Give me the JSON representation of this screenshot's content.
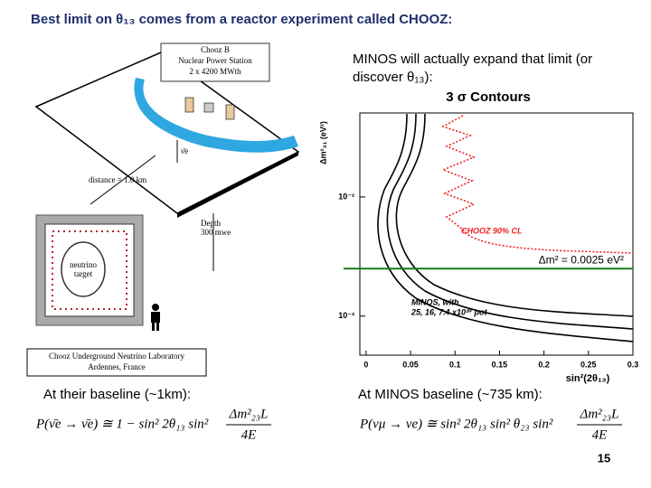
{
  "header": {
    "title": "Best limit on θ₁₃ comes from a reactor experiment called CHOOZ:"
  },
  "diagram": {
    "station_lines": [
      "Chooz B",
      "Nuclear Power Station",
      "2 x 4200 MWth"
    ],
    "neutrino": "ν̄e",
    "distance": "distance = 1.0 km",
    "depth_lines": [
      "Depth",
      "300 mwe"
    ],
    "target_lines": [
      "neutrino",
      "target"
    ],
    "lab_lines": [
      "Chooz Underground Neutrino Laboratory",
      "Ardennes, France"
    ]
  },
  "minos_text": [
    "MINOS will actually expand that limit (or",
    "discover θ₁₃):"
  ],
  "plot": {
    "title": "3 σ Contours",
    "x_label": "sin²(2θ₁₃)",
    "y_label": "Δm²₃₁ (eV²)",
    "xlim": [
      -0.007,
      0.3
    ],
    "ylim": [
      0.00047,
      0.0507
    ],
    "log_y": true,
    "xticks": [
      0,
      0.05,
      0.1,
      0.15,
      0.2,
      0.25,
      0.3
    ],
    "yticks": [
      {
        "value": 0.01,
        "label": "10⁻²"
      },
      {
        "value": 0.001,
        "label": "10⁻³"
      }
    ],
    "chooz_label": "CHOOZ 90% CL",
    "minos_label_lines": [
      "MINOS, with",
      "25, 16, 7.4 x10²⁰ pot"
    ],
    "dm2_label": "Δm² = 0.0025 eV²",
    "dm2_value": 0.0025
  },
  "left_caption": "At their baseline (~1km):",
  "right_caption": "At MINOS baseline (~735 km):",
  "formula_left": {
    "lhs": "P(ν̄e → ν̄e) ≅ 1 − sin² 2θ₁₃ sin²",
    "num": "Δm²₂₃L",
    "den": "4E"
  },
  "formula_right": {
    "lhs": "P(νμ → νe) ≅ sin² 2θ₁₃ sin² θ₂₃ sin²",
    "num": "Δm²₂₃L",
    "den": "4E"
  },
  "page_number": "15"
}
